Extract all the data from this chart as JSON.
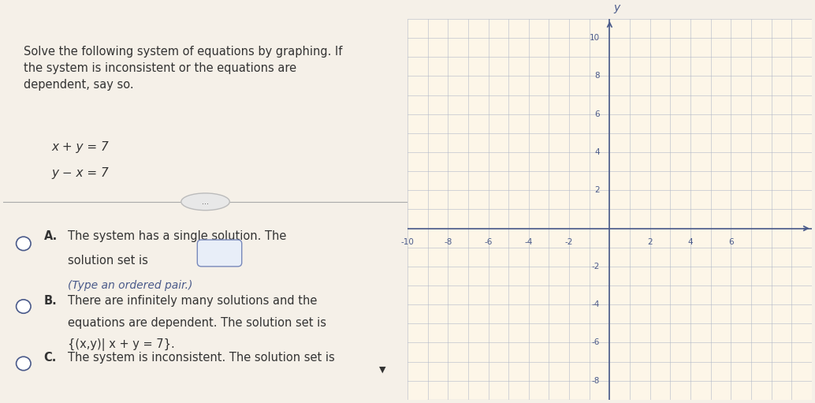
{
  "bg_color": "#f5f0e8",
  "left_bg": "#f5f0e8",
  "right_bg": "#f5f0e8",
  "title_text": "Solve the following system of equations by graphing. If\nthe system is inconsistent or the equations are\ndependent, say so.",
  "eq1": "x + y = 7",
  "eq2": "y − x = 7",
  "option_A_label": "A.",
  "option_A_line1": "The system has a single solution. The",
  "option_A_line2": "solution set is {     }.",
  "option_A_line3": "(Type an ordered pair.)",
  "option_B_label": "B.",
  "option_B_line1": "There are infinitely many solutions and the",
  "option_B_line2": "equations are dependent. The solution set is",
  "option_B_line3": "{(x,y)| x + y = 7}.",
  "option_C_label": "C.",
  "option_C_line1": "The system is inconsistent. The solution set is",
  "text_color": "#333333",
  "blue_color": "#4a5a8a",
  "grid_color": "#b0b8c8",
  "axis_color": "#4a5a8a",
  "grid_bg": "#fdf6e8",
  "xlim": [
    -10,
    8
  ],
  "ylim": [
    -9,
    11
  ],
  "xticks": [
    -10,
    -8,
    -6,
    -4,
    -2,
    2,
    4,
    6
  ],
  "yticks": [
    -8,
    -6,
    -4,
    -2,
    2,
    4,
    6,
    8,
    10
  ],
  "ylabel_text": "y",
  "divider_color": "#aaaaaa",
  "radio_color": "#4a5a8a"
}
